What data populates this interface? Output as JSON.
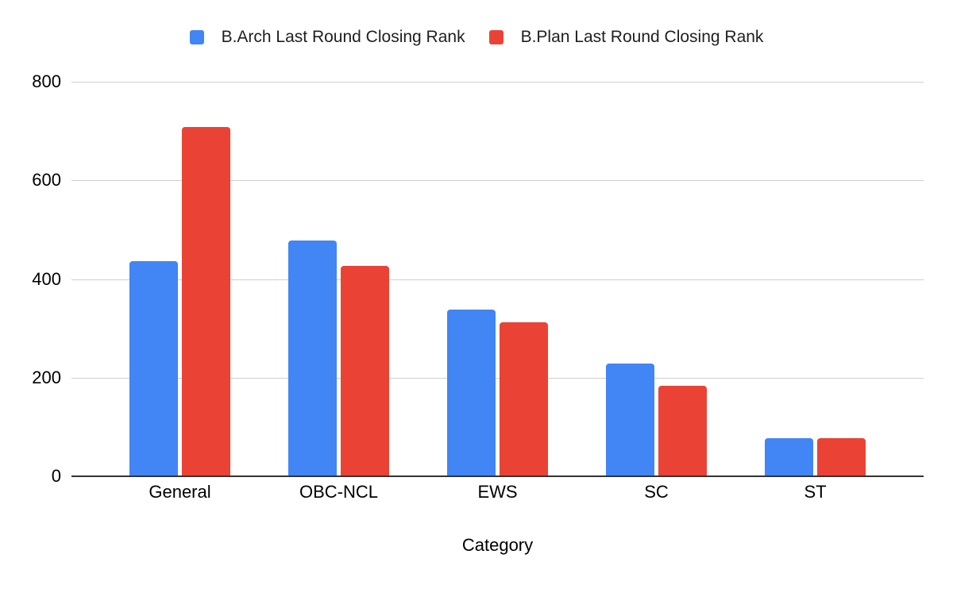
{
  "chart_data": {
    "type": "bar",
    "title": "",
    "categories": [
      "General",
      "OBC-NCL",
      "EWS",
      "SC",
      "ST"
    ],
    "series": [
      {
        "name": "B.Arch Last Round Closing Rank",
        "color": "#4285F4",
        "values": [
          436,
          478,
          338,
          229,
          78
        ]
      },
      {
        "name": "B.Plan Last Round Closing Rank",
        "color": "#EA4335",
        "values": [
          708,
          426,
          312,
          184,
          78
        ]
      }
    ],
    "xlabel": "Category",
    "ylabel": "",
    "ylim": [
      0,
      800
    ],
    "yticks": [
      0,
      200,
      400,
      600,
      800
    ],
    "grid": true,
    "legend_position": "top",
    "background_color": "#ffffff",
    "gridline_color": "#cfcfcf",
    "axis_line_color": "#333333",
    "text_color": "#000000"
  }
}
